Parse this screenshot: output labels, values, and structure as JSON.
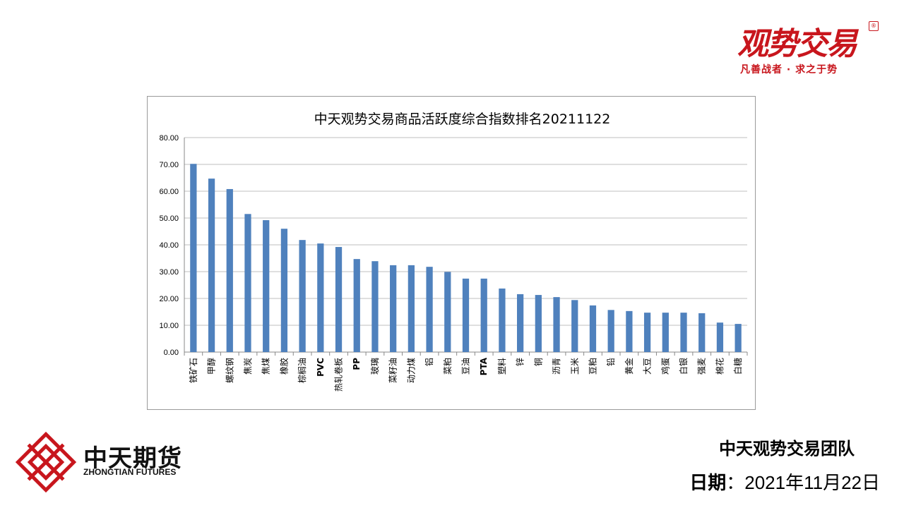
{
  "brand_top": {
    "name": "观势交易",
    "badge": "®",
    "slogan": "凡善战者 · 求之于势"
  },
  "brand_bottom": {
    "name_cn": "中天期货",
    "name_en": "ZHONGTIAN FUTURES"
  },
  "footer": {
    "team": "中天观势交易团队",
    "date_label": "日期",
    "date_sep": "：",
    "date_value": "2021年11月22日"
  },
  "colors": {
    "bar": "#4f81bd",
    "brand_red": "#c8161d",
    "grid": "#bfbfbf"
  },
  "chart_data": {
    "type": "bar",
    "title": "中天观势交易商品活跃度综合指数排名20211122",
    "xlabel": "",
    "ylabel": "",
    "ylim": [
      0,
      80
    ],
    "yticks": [
      "0.00",
      "10.00",
      "20.00",
      "30.00",
      "40.00",
      "50.00",
      "60.00",
      "70.00",
      "80.00"
    ],
    "grid": true,
    "legend": "none",
    "categories": [
      "铁矿石",
      "甲醇",
      "螺纹钢",
      "焦炭",
      "焦煤",
      "橡胶",
      "棕榈油",
      "PVC",
      "热轧卷板",
      "PP",
      "玻璃",
      "菜籽油",
      "动力煤",
      "铝",
      "菜粕",
      "豆油",
      "PTA",
      "塑料",
      "锌",
      "铜",
      "沥青",
      "玉米",
      "豆粕",
      "铅",
      "黄金",
      "大豆",
      "鸡蛋",
      "白银",
      "强麦",
      "棉花",
      "白糖"
    ],
    "values": [
      70.2,
      64.7,
      60.8,
      51.5,
      49.2,
      46.0,
      41.8,
      40.5,
      39.2,
      34.7,
      33.9,
      32.4,
      32.4,
      31.8,
      29.9,
      27.4,
      27.4,
      23.7,
      21.6,
      21.3,
      20.5,
      19.4,
      17.4,
      15.7,
      15.3,
      14.7,
      14.7,
      14.7,
      14.5,
      11.0,
      10.5
    ]
  }
}
